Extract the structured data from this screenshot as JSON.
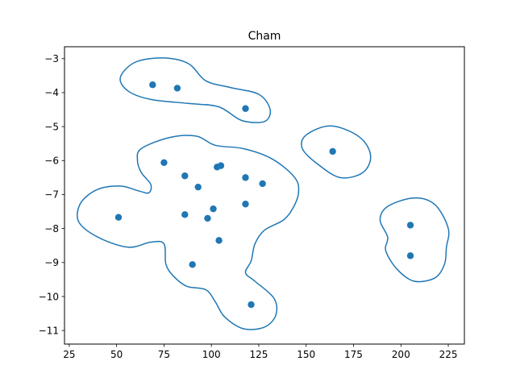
{
  "chart_data": {
    "type": "scatter",
    "title": "Cham",
    "xlabel": "",
    "ylabel": "",
    "xlim": [
      22.5,
      233.5
    ],
    "ylim": [
      -11.4,
      -2.65
    ],
    "xticks": [
      25,
      50,
      75,
      100,
      125,
      150,
      175,
      200,
      225
    ],
    "xtick_labels": [
      "25",
      "50",
      "75",
      "100",
      "125",
      "150",
      "175",
      "200",
      "225"
    ],
    "yticks": [
      -3,
      -4,
      -5,
      -6,
      -7,
      -8,
      -9,
      -10,
      -11
    ],
    "ytick_labels": [
      "−3",
      "−4",
      "−5",
      "−6",
      "−7",
      "−8",
      "−9",
      "−10",
      "−11"
    ],
    "grid": false,
    "legend": "none",
    "point_color": "#1f77b4",
    "contour_color": "#1f77b4",
    "points": [
      {
        "x": 69,
        "y": -3.77
      },
      {
        "x": 82,
        "y": -3.87
      },
      {
        "x": 118,
        "y": -4.47
      },
      {
        "x": 164,
        "y": -5.73
      },
      {
        "x": 75,
        "y": -6.06
      },
      {
        "x": 86,
        "y": -6.45
      },
      {
        "x": 93,
        "y": -6.78
      },
      {
        "x": 103,
        "y": -6.19
      },
      {
        "x": 105,
        "y": -6.15
      },
      {
        "x": 118,
        "y": -6.5
      },
      {
        "x": 127,
        "y": -6.68
      },
      {
        "x": 118,
        "y": -7.28
      },
      {
        "x": 101,
        "y": -7.42
      },
      {
        "x": 86,
        "y": -7.59
      },
      {
        "x": 98,
        "y": -7.7
      },
      {
        "x": 51,
        "y": -7.67
      },
      {
        "x": 104,
        "y": -8.35
      },
      {
        "x": 90,
        "y": -9.06
      },
      {
        "x": 121,
        "y": -10.24
      },
      {
        "x": 205,
        "y": -7.9
      },
      {
        "x": 205,
        "y": -8.8
      }
    ],
    "contours": [
      [
        [
          60,
          -3.1
        ],
        [
          75,
          -2.98
        ],
        [
          88,
          -3.15
        ],
        [
          97,
          -3.65
        ],
        [
          110,
          -3.85
        ],
        [
          125,
          -4.05
        ],
        [
          131,
          -4.5
        ],
        [
          128,
          -4.85
        ],
        [
          116,
          -4.82
        ],
        [
          104,
          -4.42
        ],
        [
          88,
          -4.32
        ],
        [
          68,
          -4.2
        ],
        [
          56,
          -3.95
        ],
        [
          52,
          -3.55
        ]
      ],
      [
        [
          63,
          -5.65
        ],
        [
          78,
          -5.32
        ],
        [
          92,
          -5.28
        ],
        [
          102,
          -5.55
        ],
        [
          117,
          -5.65
        ],
        [
          132,
          -5.95
        ],
        [
          144,
          -6.5
        ],
        [
          146,
          -6.95
        ],
        [
          143,
          -7.4
        ],
        [
          138,
          -7.75
        ],
        [
          128,
          -8.05
        ],
        [
          123,
          -8.45
        ],
        [
          121,
          -8.95
        ],
        [
          118,
          -9.3
        ],
        [
          123,
          -9.55
        ],
        [
          133,
          -10.05
        ],
        [
          134,
          -10.55
        ],
        [
          128,
          -10.9
        ],
        [
          117,
          -10.95
        ],
        [
          107,
          -10.6
        ],
        [
          102,
          -10.15
        ],
        [
          97,
          -9.8
        ],
        [
          87,
          -9.7
        ],
        [
          80,
          -9.4
        ],
        [
          76,
          -9.05
        ],
        [
          75,
          -8.45
        ],
        [
          68,
          -8.4
        ],
        [
          56,
          -8.55
        ],
        [
          40,
          -8.25
        ],
        [
          30,
          -7.8
        ],
        [
          31,
          -7.25
        ],
        [
          40,
          -6.85
        ],
        [
          52,
          -6.75
        ],
        [
          62,
          -6.9
        ],
        [
          67,
          -6.95
        ],
        [
          68,
          -6.7
        ],
        [
          63,
          -6.35
        ],
        [
          61,
          -6.0
        ]
      ],
      [
        [
          150,
          -5.25
        ],
        [
          163,
          -4.98
        ],
        [
          178,
          -5.3
        ],
        [
          184,
          -5.85
        ],
        [
          180,
          -6.35
        ],
        [
          168,
          -6.5
        ],
        [
          156,
          -6.1
        ],
        [
          148,
          -5.65
        ]
      ],
      [
        [
          193,
          -7.35
        ],
        [
          207,
          -7.1
        ],
        [
          218,
          -7.3
        ],
        [
          225,
          -8.0
        ],
        [
          224,
          -8.55
        ],
        [
          223,
          -9.05
        ],
        [
          218,
          -9.45
        ],
        [
          207,
          -9.55
        ],
        [
          198,
          -9.2
        ],
        [
          192,
          -8.65
        ],
        [
          193,
          -8.25
        ],
        [
          189,
          -7.75
        ]
      ]
    ]
  }
}
